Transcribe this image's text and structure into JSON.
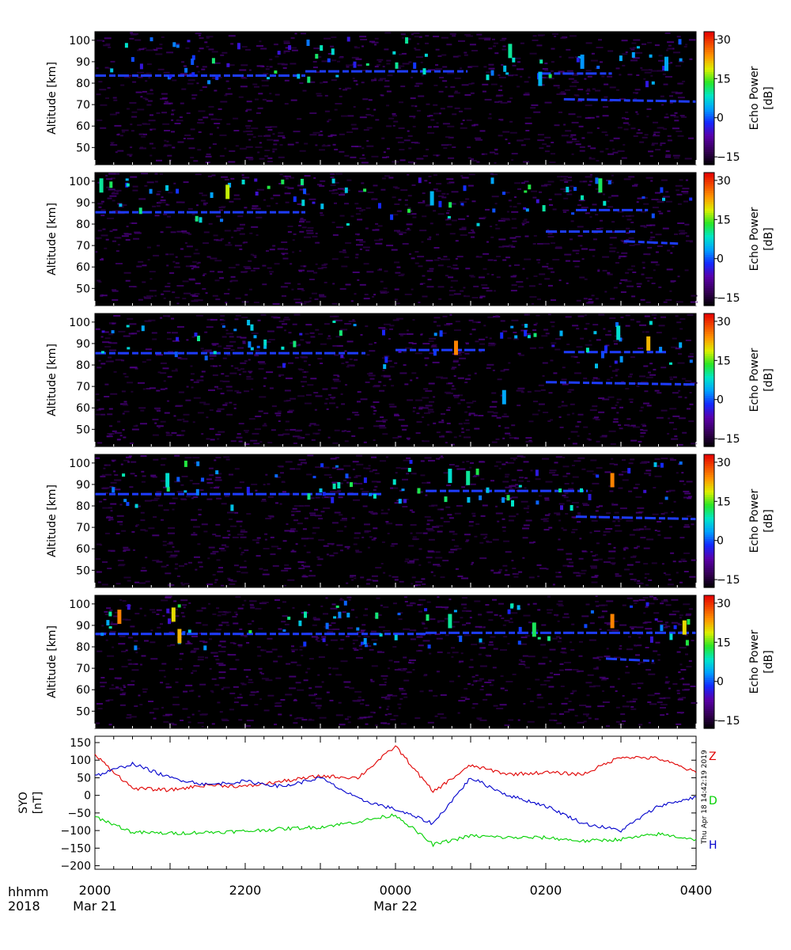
{
  "chart_data": [
    {
      "type": "heatmap",
      "panel": 1,
      "ylabel": "Altitude [km]",
      "yticks": [
        "50",
        "60",
        "70",
        "80",
        "90",
        "100"
      ],
      "ylim": [
        42,
        104
      ],
      "colorbar": {
        "label_line1": "Echo Power",
        "label_line2": "[dB]",
        "ticks": [
          "30",
          "15",
          "0",
          "−15"
        ],
        "range": [
          -18,
          33
        ]
      },
      "echo_layers": [
        {
          "x_start": 0.0,
          "x_end": 0.35,
          "alt": 83.5
        },
        {
          "x_start": 0.35,
          "x_end": 0.62,
          "alt": 85.5
        },
        {
          "x_start": 0.74,
          "x_end": 0.86,
          "alt": 84.5
        },
        {
          "x_start": 0.78,
          "x_end": 1.0,
          "alt": 72.5
        }
      ],
      "bursts": [
        {
          "x": 0.69,
          "alt": 95,
          "db": 10
        },
        {
          "x": 0.74,
          "alt": 82,
          "db": 5
        },
        {
          "x": 0.81,
          "alt": 90,
          "db": 3
        },
        {
          "x": 0.95,
          "alt": 89,
          "db": 4
        }
      ]
    },
    {
      "type": "heatmap",
      "panel": 2,
      "ylabel": "Altitude [km]",
      "yticks": [
        "50",
        "60",
        "70",
        "80",
        "90",
        "100"
      ],
      "ylim": [
        42,
        104
      ],
      "colorbar": {
        "label_line1": "Echo Power",
        "label_line2": "[dB]",
        "ticks": [
          "30",
          "15",
          "0",
          "−15"
        ],
        "range": [
          -18,
          33
        ]
      },
      "echo_layers": [
        {
          "x_start": 0.0,
          "x_end": 0.35,
          "alt": 85.5
        },
        {
          "x_start": 0.75,
          "x_end": 0.9,
          "alt": 76.5
        },
        {
          "x_start": 0.8,
          "x_end": 0.92,
          "alt": 86.5
        },
        {
          "x_start": 0.88,
          "x_end": 0.97,
          "alt": 72.0
        }
      ],
      "bursts": [
        {
          "x": 0.01,
          "alt": 98,
          "db": 10
        },
        {
          "x": 0.22,
          "alt": 95,
          "db": 18
        },
        {
          "x": 0.56,
          "alt": 92,
          "db": 5
        },
        {
          "x": 0.84,
          "alt": 98,
          "db": 12
        }
      ]
    },
    {
      "type": "heatmap",
      "panel": 3,
      "ylabel": "Altitude [km]",
      "yticks": [
        "50",
        "60",
        "70",
        "80",
        "90",
        "100"
      ],
      "ylim": [
        42,
        104
      ],
      "colorbar": {
        "label_line1": "Echo Power",
        "label_line2": "[dB]",
        "ticks": [
          "30",
          "15",
          "0",
          "−15"
        ],
        "range": [
          -18,
          33
        ]
      },
      "echo_layers": [
        {
          "x_start": 0.0,
          "x_end": 0.45,
          "alt": 85.5
        },
        {
          "x_start": 0.5,
          "x_end": 0.65,
          "alt": 87.0
        },
        {
          "x_start": 0.78,
          "x_end": 0.95,
          "alt": 86.0
        },
        {
          "x_start": 0.75,
          "x_end": 1.0,
          "alt": 72.0
        }
      ],
      "bursts": [
        {
          "x": 0.6,
          "alt": 88,
          "db": 25
        },
        {
          "x": 0.68,
          "alt": 65,
          "db": 4
        },
        {
          "x": 0.87,
          "alt": 95,
          "db": 8
        },
        {
          "x": 0.92,
          "alt": 90,
          "db": 22
        }
      ]
    },
    {
      "type": "heatmap",
      "panel": 4,
      "ylabel": "Altitude [km]",
      "yticks": [
        "50",
        "60",
        "70",
        "80",
        "90",
        "100"
      ],
      "ylim": [
        42,
        104
      ],
      "colorbar": {
        "label_line1": "Echo Power",
        "label_line2": "[dB]",
        "ticks": [
          "30",
          "15",
          "0",
          "−15"
        ],
        "range": [
          -18,
          33
        ]
      },
      "echo_layers": [
        {
          "x_start": 0.0,
          "x_end": 0.48,
          "alt": 85.5
        },
        {
          "x_start": 0.55,
          "x_end": 0.82,
          "alt": 87.0
        },
        {
          "x_start": 0.8,
          "x_end": 1.0,
          "alt": 75.0
        }
      ],
      "bursts": [
        {
          "x": 0.12,
          "alt": 92,
          "db": 8
        },
        {
          "x": 0.59,
          "alt": 94,
          "db": 8
        },
        {
          "x": 0.62,
          "alt": 93,
          "db": 10
        },
        {
          "x": 0.86,
          "alt": 92,
          "db": 25
        }
      ]
    },
    {
      "type": "heatmap",
      "panel": 5,
      "ylabel": "Altitude [km]",
      "yticks": [
        "50",
        "60",
        "70",
        "80",
        "90",
        "100"
      ],
      "ylim": [
        42,
        104
      ],
      "colorbar": {
        "label_line1": "Echo Power",
        "label_line2": "[dB]",
        "ticks": [
          "30",
          "15",
          "0",
          "−15"
        ],
        "range": [
          -18,
          33
        ]
      },
      "echo_layers": [
        {
          "x_start": 0.0,
          "x_end": 0.55,
          "alt": 86.0
        },
        {
          "x_start": 0.55,
          "x_end": 1.0,
          "alt": 86.5
        },
        {
          "x_start": 0.85,
          "x_end": 0.93,
          "alt": 74.5
        }
      ],
      "bursts": [
        {
          "x": 0.04,
          "alt": 94,
          "db": 25
        },
        {
          "x": 0.13,
          "alt": 95,
          "db": 20
        },
        {
          "x": 0.14,
          "alt": 85,
          "db": 22
        },
        {
          "x": 0.59,
          "alt": 92,
          "db": 10
        },
        {
          "x": 0.73,
          "alt": 88,
          "db": 12
        },
        {
          "x": 0.86,
          "alt": 92,
          "db": 25
        },
        {
          "x": 0.98,
          "alt": 89,
          "db": 20
        }
      ]
    },
    {
      "type": "line",
      "panel": 6,
      "ylabel_line1": "SYO",
      "ylabel_line2": "[nT]",
      "ylim": [
        -210,
        168
      ],
      "yticks": [
        "150",
        "100",
        "50",
        "0",
        "−50",
        "−100",
        "−150",
        "−200"
      ],
      "ytick_values": [
        150,
        100,
        50,
        0,
        -50,
        -100,
        -150,
        -200
      ],
      "x_hours": [
        0,
        0.5,
        1,
        1.5,
        2,
        2.5,
        3,
        3.5,
        4,
        4.5,
        5,
        5.5,
        6,
        6.5,
        7,
        7.5,
        8
      ],
      "series": [
        {
          "name": "Z",
          "color": "#e00000",
          "values": [
            115,
            20,
            15,
            30,
            25,
            40,
            55,
            50,
            140,
            10,
            85,
            60,
            65,
            60,
            110,
            105,
            65
          ]
        },
        {
          "name": "D",
          "color": "#00d000",
          "values": [
            -60,
            -105,
            -108,
            -105,
            -102,
            -95,
            -90,
            -75,
            -55,
            -140,
            -115,
            -120,
            -120,
            -130,
            -125,
            -110,
            -125
          ]
        },
        {
          "name": "H",
          "color": "#0000cc",
          "values": [
            55,
            90,
            50,
            30,
            40,
            25,
            50,
            -10,
            -40,
            -80,
            50,
            0,
            -30,
            -80,
            -100,
            -30,
            -5
          ]
        }
      ],
      "timestamp": "Thu Apr 18 14:42:19 2019"
    }
  ],
  "time_axis": {
    "row1_label": "hhmm",
    "row2_label": "2018",
    "ticks": [
      {
        "hour": 0,
        "time": "2000",
        "date": "Mar 21"
      },
      {
        "hour": 2,
        "time": "2200",
        "date": ""
      },
      {
        "hour": 4,
        "time": "0000",
        "date": "Mar 22"
      },
      {
        "hour": 6,
        "time": "0200",
        "date": ""
      },
      {
        "hour": 8,
        "time": "0400",
        "date": ""
      }
    ],
    "range_hours": [
      0,
      8
    ]
  }
}
